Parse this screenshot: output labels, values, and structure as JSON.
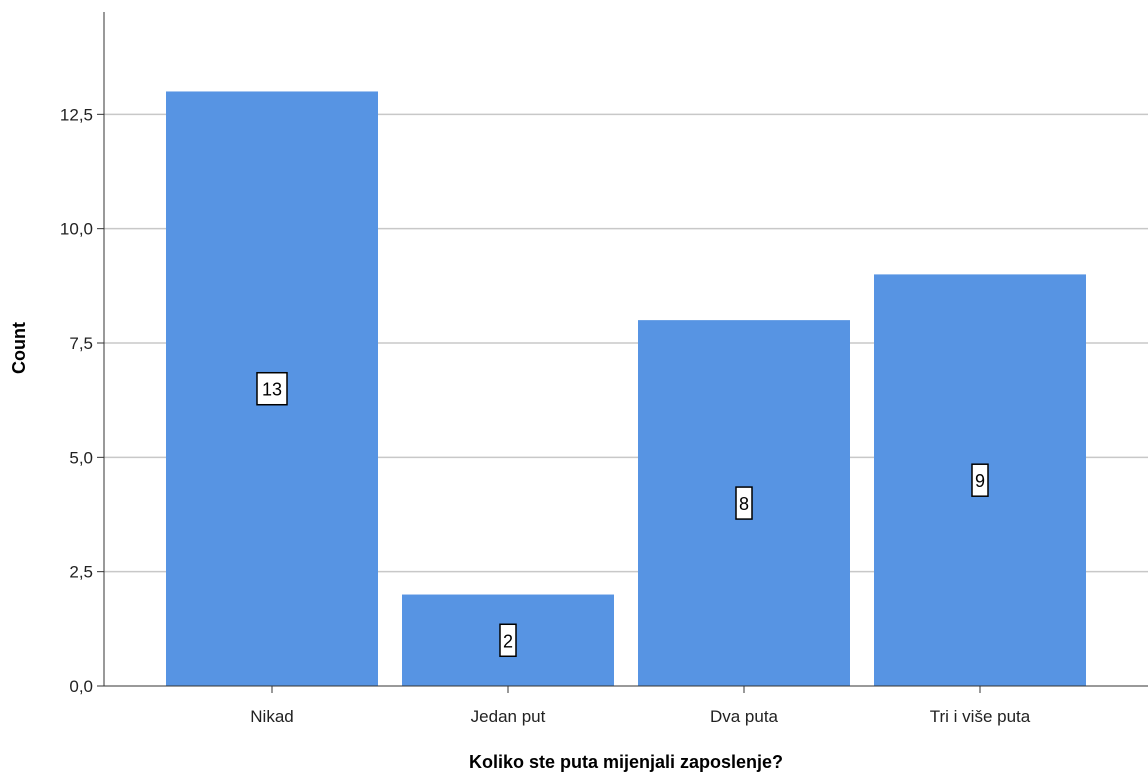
{
  "chart_data": {
    "type": "bar",
    "categories": [
      "Nikad",
      "Jedan put",
      "Dva puta",
      "Tri i  više puta"
    ],
    "values": [
      13,
      2,
      8,
      9
    ],
    "data_labels": [
      "13",
      "2",
      "8",
      "9"
    ],
    "xlabel": "Koliko ste puta mijenjali zaposlenje?",
    "ylabel": "Count",
    "ylim": [
      0,
      15
    ],
    "yticks": [
      0,
      2.5,
      5,
      7.5,
      10,
      12.5
    ],
    "ytick_labels": [
      "0,0",
      "2,5",
      "5,0",
      "7,5",
      "10,0",
      "12,5"
    ],
    "grid": "horizontal",
    "bar_color": "#5794e3",
    "grid_color": "#c8c8c8"
  }
}
